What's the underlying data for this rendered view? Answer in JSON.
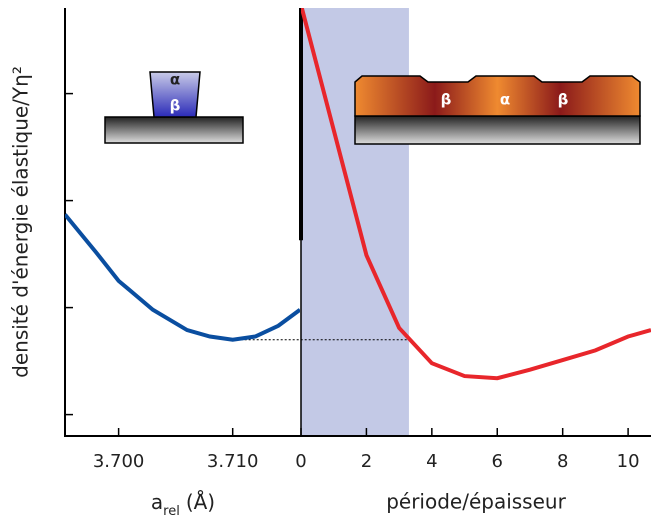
{
  "chart_data": [
    {
      "type": "line",
      "ylabel": "densité d'énergie élastique/Yη²",
      "xlabel": {
        "main": "a",
        "sub": "rel",
        "suffix": "(Å)"
      },
      "x": [
        3.6953,
        3.698,
        3.7,
        3.703,
        3.706,
        3.708,
        3.71,
        3.712,
        3.714,
        3.7159
      ],
      "series": [
        {
          "color": "#0a4ea0",
          "values": [
            2.07,
            1.72,
            1.45,
            1.18,
            0.99,
            0.93,
            0.9,
            0.93,
            1.03,
            1.18
          ]
        }
      ],
      "xlim": [
        3.6953,
        3.7159
      ],
      "xticks": [
        {
          "value": 3.7,
          "label": "3.700"
        },
        {
          "value": 3.71,
          "label": "3.710"
        }
      ],
      "ylim": [
        0,
        4
      ],
      "yticks": [
        0.2,
        1.2,
        2.2,
        3.2
      ],
      "reference_line": {
        "y": 0.9,
        "x_start": 3.71
      },
      "annotations": [
        "α",
        "β"
      ]
    },
    {
      "type": "line",
      "xlabel": "période/épaisseur",
      "x": [
        0,
        1,
        2,
        3,
        4,
        5,
        6,
        7,
        8,
        9,
        10,
        10.7
      ],
      "series": [
        {
          "color": "#e8262b",
          "values": [
            4.03,
            2.86,
            1.69,
            1.01,
            0.68,
            0.56,
            0.54,
            0.62,
            0.71,
            0.8,
            0.93,
            0.99
          ]
        }
      ],
      "xlim": [
        0,
        10.7
      ],
      "xticks": [
        0,
        2,
        4,
        6,
        8,
        10
      ],
      "ylim": [
        0,
        4
      ],
      "band": [
        0,
        3.3
      ],
      "band_color": "#c3c9e6",
      "reference_line": {
        "y": 0.9,
        "x_end": 3.3
      },
      "divider_thick_to": 1.83,
      "annotations": [
        "β",
        "α",
        "β"
      ]
    }
  ]
}
